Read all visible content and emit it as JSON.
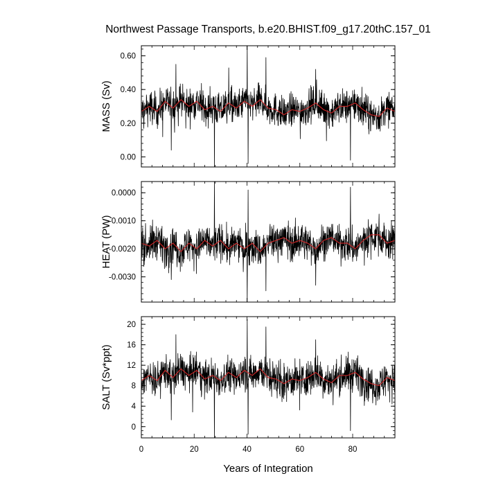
{
  "chart_data": {
    "type": "line",
    "title": "Northwest Passage Transports, b.e20.BHIST.f09_g17.20thC.157_01",
    "xlabel": "Years of Integration",
    "xlim": [
      0,
      96
    ],
    "xticks": [
      0,
      20,
      40,
      60,
      80
    ],
    "xtick_labels": [
      "0",
      "20",
      "40",
      "60",
      "80"
    ],
    "line_colors": {
      "monthly": "#000000",
      "annual_mean": "#d62728"
    },
    "grid": false,
    "panels": [
      {
        "ylabel": "MASS (Sv)",
        "ylim": [
          -0.06,
          0.66
        ],
        "yticks": [
          0.0,
          0.2,
          0.4,
          0.6
        ],
        "ytick_labels": [
          "0.00",
          "0.20",
          "0.40",
          "0.60"
        ],
        "baseline": 0.29,
        "noise": 0.07,
        "spikes": [
          {
            "x": 27.7,
            "y": -0.06
          },
          {
            "x": 40.1,
            "y": 0.66
          },
          {
            "x": 40.4,
            "y": -0.04
          },
          {
            "x": 47.2,
            "y": 0.59
          },
          {
            "x": 11.3,
            "y": 0.04
          },
          {
            "x": 79.2,
            "y": -0.02
          },
          {
            "x": 66.0,
            "y": 0.52
          },
          {
            "x": 13.1,
            "y": 0.55
          }
        ],
        "annual_anchors": [
          [
            0,
            0.27
          ],
          [
            3,
            0.3
          ],
          [
            6,
            0.27
          ],
          [
            9,
            0.33
          ],
          [
            12,
            0.29
          ],
          [
            15,
            0.34
          ],
          [
            18,
            0.3
          ],
          [
            21,
            0.33
          ],
          [
            24,
            0.28
          ],
          [
            27,
            0.3
          ],
          [
            30,
            0.27
          ],
          [
            33,
            0.32
          ],
          [
            36,
            0.29
          ],
          [
            39,
            0.33
          ],
          [
            42,
            0.3
          ],
          [
            45,
            0.34
          ],
          [
            48,
            0.29
          ],
          [
            51,
            0.28
          ],
          [
            54,
            0.25
          ],
          [
            57,
            0.28
          ],
          [
            60,
            0.27
          ],
          [
            63,
            0.29
          ],
          [
            66,
            0.32
          ],
          [
            69,
            0.28
          ],
          [
            72,
            0.26
          ],
          [
            75,
            0.3
          ],
          [
            78,
            0.3
          ],
          [
            81,
            0.32
          ],
          [
            84,
            0.28
          ],
          [
            87,
            0.25
          ],
          [
            90,
            0.24
          ],
          [
            93,
            0.29
          ],
          [
            96,
            0.27
          ]
        ]
      },
      {
        "ylabel": "HEAT (PW)",
        "ylim": [
          -0.0039,
          0.0004
        ],
        "yticks": [
          -0.003,
          -0.002,
          -0.001,
          0.0
        ],
        "ytick_labels": [
          "-0.0030",
          "-0.0020",
          "-0.0010",
          "0.0000"
        ],
        "baseline": -0.0018,
        "noise": 0.00045,
        "spikes": [
          {
            "x": 27.7,
            "y": 0.0004
          },
          {
            "x": 40.1,
            "y": -0.0039
          },
          {
            "x": 40.4,
            "y": 0.0001
          },
          {
            "x": 47.2,
            "y": -0.0035
          },
          {
            "x": 11.3,
            "y": -0.0031
          },
          {
            "x": 79.2,
            "y": 0.0002
          },
          {
            "x": 66.0,
            "y": -0.0033
          }
        ],
        "annual_anchors": [
          [
            0,
            -0.0018
          ],
          [
            3,
            -0.0019
          ],
          [
            6,
            -0.0017
          ],
          [
            9,
            -0.002
          ],
          [
            12,
            -0.0018
          ],
          [
            15,
            -0.0021
          ],
          [
            18,
            -0.0018
          ],
          [
            21,
            -0.002
          ],
          [
            24,
            -0.0017
          ],
          [
            27,
            -0.0019
          ],
          [
            30,
            -0.0017
          ],
          [
            33,
            -0.002
          ],
          [
            36,
            -0.0018
          ],
          [
            39,
            -0.002
          ],
          [
            42,
            -0.0018
          ],
          [
            45,
            -0.0021
          ],
          [
            48,
            -0.0018
          ],
          [
            51,
            -0.0017
          ],
          [
            54,
            -0.0016
          ],
          [
            57,
            -0.0018
          ],
          [
            60,
            -0.0017
          ],
          [
            63,
            -0.0018
          ],
          [
            66,
            -0.002
          ],
          [
            69,
            -0.0017
          ],
          [
            72,
            -0.0016
          ],
          [
            75,
            -0.0018
          ],
          [
            78,
            -0.0018
          ],
          [
            81,
            -0.002
          ],
          [
            84,
            -0.0017
          ],
          [
            87,
            -0.0015
          ],
          [
            90,
            -0.0015
          ],
          [
            93,
            -0.0018
          ],
          [
            96,
            -0.0017
          ]
        ]
      },
      {
        "ylabel": "SALT (Sv*ppt)",
        "ylim": [
          -2.2,
          21.5
        ],
        "yticks": [
          0,
          4,
          8,
          12,
          16,
          20
        ],
        "ytick_labels": [
          "0",
          "4",
          "8",
          "12",
          "16",
          "20"
        ],
        "baseline": 9.5,
        "noise": 2.4,
        "spikes": [
          {
            "x": 27.7,
            "y": -2.2
          },
          {
            "x": 40.1,
            "y": 21.0
          },
          {
            "x": 40.4,
            "y": -1.5
          },
          {
            "x": 47.2,
            "y": 19.5
          },
          {
            "x": 11.3,
            "y": 1.3
          },
          {
            "x": 79.2,
            "y": -0.8
          },
          {
            "x": 66.0,
            "y": 17.0
          },
          {
            "x": 13.1,
            "y": 18.0
          }
        ],
        "annual_anchors": [
          [
            0,
            9.0
          ],
          [
            3,
            10.0
          ],
          [
            6,
            9.0
          ],
          [
            9,
            11.0
          ],
          [
            12,
            9.6
          ],
          [
            15,
            11.3
          ],
          [
            18,
            10.0
          ],
          [
            21,
            11.0
          ],
          [
            24,
            9.3
          ],
          [
            27,
            10.0
          ],
          [
            30,
            9.0
          ],
          [
            33,
            10.6
          ],
          [
            36,
            9.6
          ],
          [
            39,
            11.0
          ],
          [
            42,
            10.0
          ],
          [
            45,
            11.3
          ],
          [
            48,
            9.6
          ],
          [
            51,
            9.3
          ],
          [
            54,
            8.4
          ],
          [
            57,
            9.3
          ],
          [
            60,
            9.0
          ],
          [
            63,
            9.6
          ],
          [
            66,
            10.6
          ],
          [
            69,
            9.3
          ],
          [
            72,
            8.6
          ],
          [
            75,
            10.0
          ],
          [
            78,
            10.0
          ],
          [
            81,
            10.6
          ],
          [
            84,
            9.3
          ],
          [
            87,
            8.4
          ],
          [
            90,
            8.0
          ],
          [
            93,
            9.6
          ],
          [
            96,
            9.0
          ]
        ]
      }
    ]
  }
}
